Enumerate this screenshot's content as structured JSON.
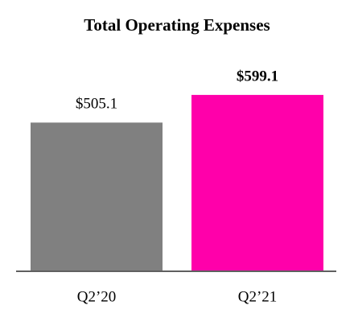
{
  "chart_data": {
    "type": "bar",
    "title": "Total Operating Expenses",
    "categories": [
      "Q2’20",
      "Q2’21"
    ],
    "values": [
      505.1,
      599.1
    ],
    "value_labels": [
      "$505.1",
      "$599.1"
    ],
    "colors": [
      "#808080",
      "#ff00aa"
    ],
    "ylim": [
      0,
      700
    ]
  }
}
